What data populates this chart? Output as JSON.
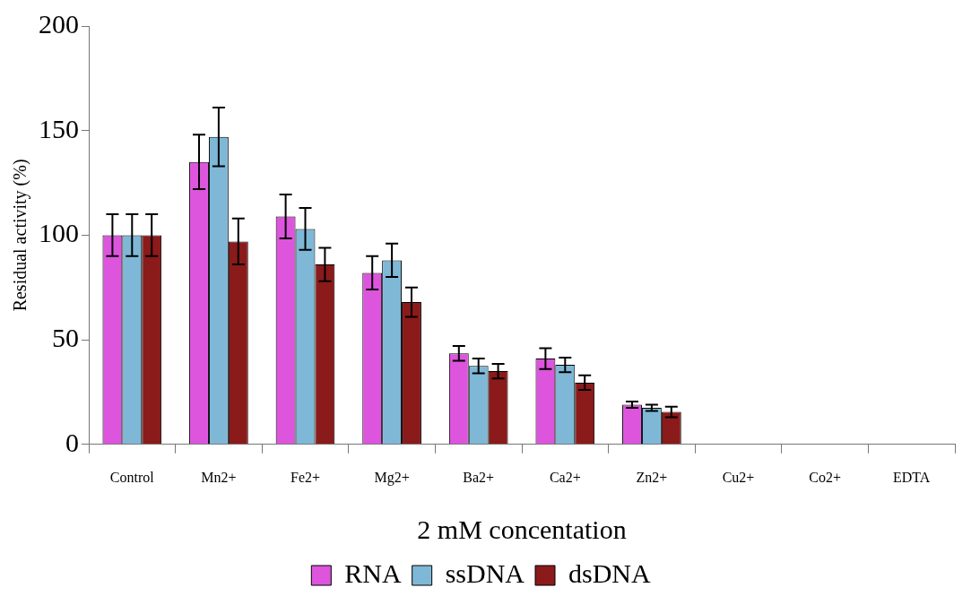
{
  "chart_data": {
    "type": "bar",
    "xlabel": "2 mM concentation",
    "ylabel": "Residual activity (%)",
    "categories": [
      "Control",
      "Mn2+",
      "Fe2+",
      "Mg2+",
      "Ba2+",
      "Ca2+",
      "Zn2+",
      "Cu2+",
      "Co2+",
      "EDTA"
    ],
    "series": [
      {
        "name": "RNA",
        "color": "#dd55dd",
        "values": [
          100,
          135,
          109,
          82,
          43.5,
          41,
          19,
          0,
          0,
          0
        ],
        "errors": [
          10,
          13,
          10.5,
          8,
          3.5,
          5,
          1.5,
          null,
          null,
          null
        ]
      },
      {
        "name": "ssDNA",
        "color": "#7fb8d6",
        "values": [
          100,
          147,
          103,
          88,
          37.5,
          38,
          17.5,
          0,
          0,
          0
        ],
        "errors": [
          10,
          14,
          10,
          8,
          3.5,
          3.5,
          1.5,
          null,
          null,
          null
        ]
      },
      {
        "name": "dsDNA",
        "color": "#8b1a1a",
        "values": [
          100,
          97,
          86,
          68,
          35,
          29.5,
          15.5,
          0,
          0,
          0
        ],
        "errors": [
          10,
          11,
          8,
          7,
          3.5,
          3.5,
          2.5,
          null,
          null,
          null
        ]
      }
    ],
    "ylim": [
      0,
      200
    ],
    "yticks": [
      0,
      50,
      100,
      150,
      200
    ],
    "grid": false,
    "legend": "bottom"
  }
}
